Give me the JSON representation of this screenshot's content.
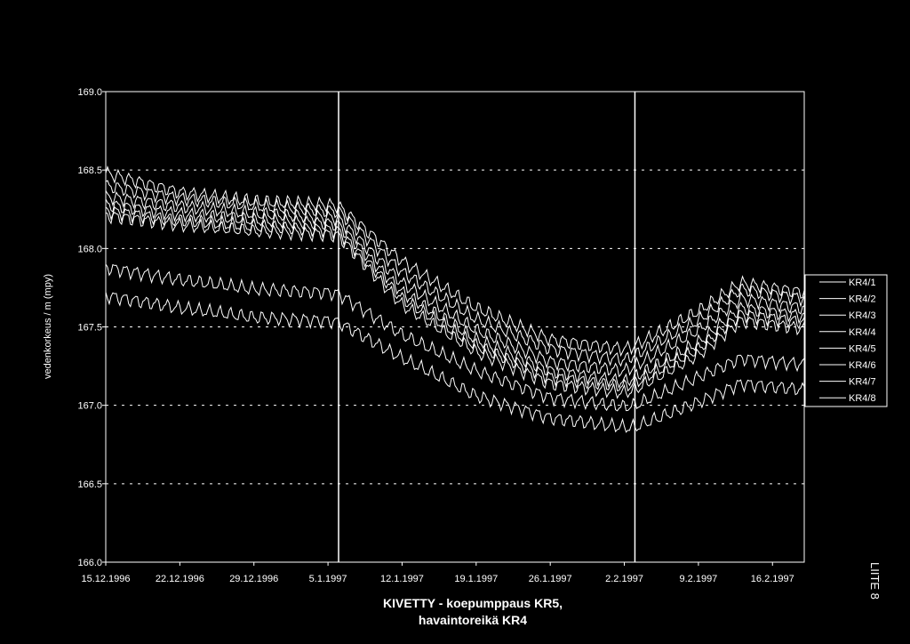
{
  "chart_data": {
    "type": "line",
    "title_lines": [
      "KIVETTY - koepumppaus KR5,",
      "havaintoreikä KR4"
    ],
    "xlabel": "",
    "ylabel": "vedenkorkeus / m (mpy)",
    "x_tick_labels": [
      "15.12.1996",
      "22.12.1996",
      "29.12.1996",
      "5.1.1997",
      "12.1.1997",
      "19.1.1997",
      "26.1.1997",
      "2.2.1997",
      "9.2.1997",
      "16.2.1997"
    ],
    "xlim": [
      "15.12.1996",
      "19.2.1997"
    ],
    "y_tick_labels": [
      "169.0",
      "168.5",
      "168.0",
      "167.5",
      "167.0",
      "166.5",
      "166.0"
    ],
    "ylim": [
      166.0,
      169.0
    ],
    "grid": "horizontal dashed",
    "legend_position": "right",
    "vertical_markers": [
      "6.1.1997",
      "3.2.1997"
    ],
    "series": [
      {
        "name": "KR4/1",
        "color": "#ffffff",
        "x": [
          "15.12.1996",
          "22.12.1996",
          "29.12.1996",
          "5.1.1997",
          "6.1.1997",
          "12.1.1997",
          "19.1.1997",
          "26.1.1997",
          "2.2.1997",
          "3.2.1997",
          "9.2.1997",
          "13.2.1997",
          "19.2.1997"
        ],
        "y": [
          168.48,
          168.36,
          168.3,
          168.28,
          168.27,
          167.92,
          167.62,
          167.42,
          167.36,
          167.38,
          167.6,
          167.78,
          167.72
        ]
      },
      {
        "name": "KR4/2",
        "color": "#ffffff",
        "x": [
          "15.12.1996",
          "22.12.1996",
          "29.12.1996",
          "5.1.1997",
          "6.1.1997",
          "12.1.1997",
          "19.1.1997",
          "26.1.1997",
          "2.2.1997",
          "3.2.1997",
          "9.2.1997",
          "13.2.1997",
          "19.2.1997"
        ],
        "y": [
          168.4,
          168.32,
          168.27,
          168.24,
          168.24,
          167.85,
          167.55,
          167.36,
          167.29,
          167.32,
          167.54,
          167.74,
          167.68
        ]
      },
      {
        "name": "KR4/3",
        "color": "#ffffff",
        "x": [
          "15.12.1996",
          "22.12.1996",
          "29.12.1996",
          "5.1.1997",
          "6.1.1997",
          "12.1.1997",
          "19.1.1997",
          "26.1.1997",
          "2.2.1997",
          "3.2.1997",
          "9.2.1997",
          "13.2.1997",
          "19.2.1997"
        ],
        "y": [
          168.33,
          168.27,
          168.22,
          168.2,
          168.19,
          167.78,
          167.48,
          167.28,
          167.22,
          167.25,
          167.48,
          167.68,
          167.62
        ]
      },
      {
        "name": "KR4/4",
        "color": "#ffffff",
        "x": [
          "15.12.1996",
          "22.12.1996",
          "29.12.1996",
          "5.1.1997",
          "6.1.1997",
          "12.1.1997",
          "19.1.1997",
          "26.1.1997",
          "2.2.1997",
          "3.2.1997",
          "9.2.1997",
          "13.2.1997",
          "19.2.1997"
        ],
        "y": [
          168.28,
          168.22,
          168.18,
          168.16,
          168.15,
          167.72,
          167.42,
          167.22,
          167.15,
          167.18,
          167.4,
          167.62,
          167.57
        ]
      },
      {
        "name": "KR4/5",
        "color": "#ffffff",
        "x": [
          "15.12.1996",
          "22.12.1996",
          "29.12.1996",
          "5.1.1997",
          "6.1.1997",
          "12.1.1997",
          "19.1.1997",
          "26.1.1997",
          "2.2.1997",
          "3.2.1997",
          "9.2.1997",
          "13.2.1997",
          "19.2.1997"
        ],
        "y": [
          168.24,
          168.18,
          168.14,
          168.12,
          168.11,
          167.68,
          167.38,
          167.18,
          167.12,
          167.14,
          167.36,
          167.58,
          167.53
        ]
      },
      {
        "name": "KR4/6",
        "color": "#ffffff",
        "x": [
          "15.12.1996",
          "22.12.1996",
          "29.12.1996",
          "5.1.1997",
          "6.1.1997",
          "12.1.1997",
          "19.1.1997",
          "26.1.1997",
          "2.2.1997",
          "3.2.1997",
          "9.2.1997",
          "13.2.1997",
          "19.2.1997"
        ],
        "y": [
          168.21,
          168.15,
          168.11,
          168.09,
          168.08,
          167.64,
          167.34,
          167.14,
          167.08,
          167.1,
          167.32,
          167.54,
          167.49
        ]
      },
      {
        "name": "KR4/7",
        "color": "#ffffff",
        "x": [
          "15.12.1996",
          "22.12.1996",
          "29.12.1996",
          "5.1.1997",
          "6.1.1997",
          "12.1.1997",
          "19.1.1997",
          "26.1.1997",
          "2.2.1997",
          "3.2.1997",
          "9.2.1997",
          "13.2.1997",
          "19.2.1997"
        ],
        "y": [
          167.88,
          167.8,
          167.74,
          167.72,
          167.71,
          167.45,
          167.22,
          167.05,
          166.99,
          167.0,
          167.18,
          167.3,
          167.26
        ]
      },
      {
        "name": "KR4/8",
        "color": "#ffffff",
        "x": [
          "15.12.1996",
          "22.12.1996",
          "29.12.1996",
          "5.1.1997",
          "6.1.1997",
          "12.1.1997",
          "19.1.1997",
          "26.1.1997",
          "2.2.1997",
          "3.2.1997",
          "9.2.1997",
          "13.2.1997",
          "19.2.1997"
        ],
        "y": [
          167.7,
          167.62,
          167.56,
          167.54,
          167.53,
          167.3,
          167.06,
          166.92,
          166.86,
          166.86,
          167.02,
          167.14,
          167.1
        ]
      }
    ]
  },
  "side_note": "LIITE 8"
}
